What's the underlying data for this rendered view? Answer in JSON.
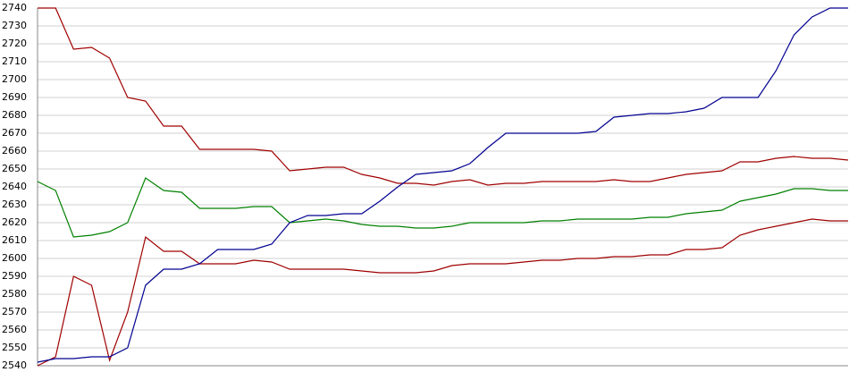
{
  "chart_data": {
    "type": "line",
    "ylim": [
      2540,
      2740
    ],
    "yticks": [
      2540,
      2550,
      2560,
      2570,
      2580,
      2590,
      2600,
      2610,
      2620,
      2630,
      2640,
      2650,
      2660,
      2670,
      2680,
      2690,
      2700,
      2710,
      2720,
      2730,
      2740
    ],
    "grid": true,
    "series": [
      {
        "color": "#a00000",
        "values": [
          2740,
          2740,
          2717,
          2718,
          2712,
          2690,
          2688,
          2674,
          2674,
          2661,
          2661,
          2661,
          2661,
          2660,
          2649,
          2650,
          2651,
          2651,
          2647,
          2645,
          2642,
          2642,
          2641,
          2643,
          2644,
          2641,
          2642,
          2642,
          2643,
          2643,
          2643,
          2643,
          2644,
          2643,
          2643,
          2645,
          2647,
          2648,
          2649,
          2654,
          2654,
          2656,
          2657,
          2656,
          2656,
          2655
        ]
      },
      {
        "color": "#008000",
        "values": [
          2643,
          2638,
          2612,
          2613,
          2615,
          2620,
          2645,
          2638,
          2637,
          2628,
          2628,
          2628,
          2629,
          2629,
          2620,
          2621,
          2622,
          2621,
          2619,
          2618,
          2618,
          2617,
          2617,
          2618,
          2620,
          2620,
          2620,
          2620,
          2621,
          2621,
          2622,
          2622,
          2622,
          2622,
          2623,
          2623,
          2625,
          2626,
          2627,
          2632,
          2634,
          2636,
          2639,
          2639,
          2638,
          2638
        ]
      },
      {
        "color": "#a00000",
        "values": [
          2540,
          2545,
          2590,
          2585,
          2543,
          2570,
          2612,
          2604,
          2604,
          2597,
          2597,
          2597,
          2599,
          2598,
          2594,
          2594,
          2594,
          2594,
          2593,
          2592,
          2592,
          2592,
          2593,
          2596,
          2597,
          2597,
          2597,
          2598,
          2599,
          2599,
          2600,
          2600,
          2601,
          2601,
          2602,
          2602,
          2605,
          2605,
          2606,
          2613,
          2616,
          2618,
          2620,
          2622,
          2621,
          2621
        ]
      },
      {
        "color": "#000090",
        "values": [
          2542,
          2544,
          2544,
          2545,
          2545,
          2550,
          2585,
          2594,
          2594,
          2597,
          2605,
          2605,
          2605,
          2608,
          2620,
          2624,
          2624,
          2625,
          2625,
          2632,
          2640,
          2647,
          2648,
          2649,
          2653,
          2662,
          2670,
          2670,
          2670,
          2670,
          2670,
          2671,
          2679,
          2680,
          2681,
          2681,
          2682,
          2684,
          2690,
          2690,
          2690,
          2705,
          2725,
          2735,
          2740,
          2740
        ]
      }
    ]
  }
}
